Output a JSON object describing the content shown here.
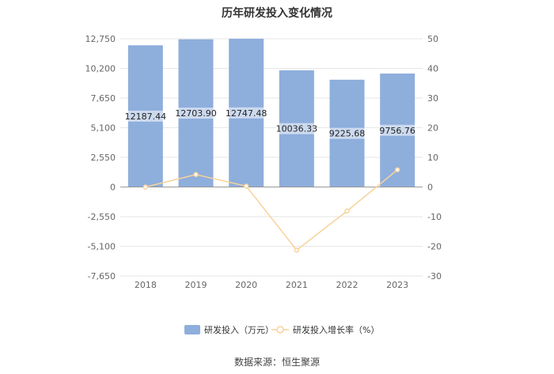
{
  "chart_data": {
    "type": "bar",
    "title": "历年研发投入变化情况",
    "categories": [
      "2018",
      "2019",
      "2020",
      "2021",
      "2022",
      "2023"
    ],
    "series": [
      {
        "name": "研发投入（万元）",
        "kind": "bar",
        "axis": "left",
        "color": "#8eaedc",
        "values": [
          12187.44,
          12703.9,
          12747.48,
          10036.33,
          9225.68,
          9756.76
        ],
        "data_labels": [
          "12187.44",
          "12703.90",
          "12747.48",
          "10036.33",
          "9225.68",
          "9756.76"
        ]
      },
      {
        "name": "研发投入增长率（%）",
        "kind": "line",
        "axis": "right",
        "color": "#f8d29a",
        "values": [
          0.0,
          4.2,
          0.3,
          -21.3,
          -8.1,
          5.8
        ]
      }
    ],
    "y_left": {
      "ylim": [
        -7650,
        12750
      ],
      "ticks": [
        12750,
        10200,
        7650,
        5100,
        2550,
        0,
        -2550,
        -5100,
        -7650
      ],
      "tick_labels": [
        "12,750",
        "10,200",
        "7,650",
        "5,100",
        "2,550",
        "0",
        "-2,550",
        "-5,100",
        "-7,650"
      ]
    },
    "y_right": {
      "ylim": [
        -30,
        50
      ],
      "ticks": [
        50,
        40,
        30,
        20,
        10,
        0,
        -10,
        -20,
        -30
      ],
      "tick_labels": [
        "50",
        "40",
        "30",
        "20",
        "10",
        "0",
        "-10",
        "-20",
        "-30"
      ]
    },
    "grid": true,
    "legend": "bottom-center"
  },
  "source": "数据来源：恒生聚源"
}
